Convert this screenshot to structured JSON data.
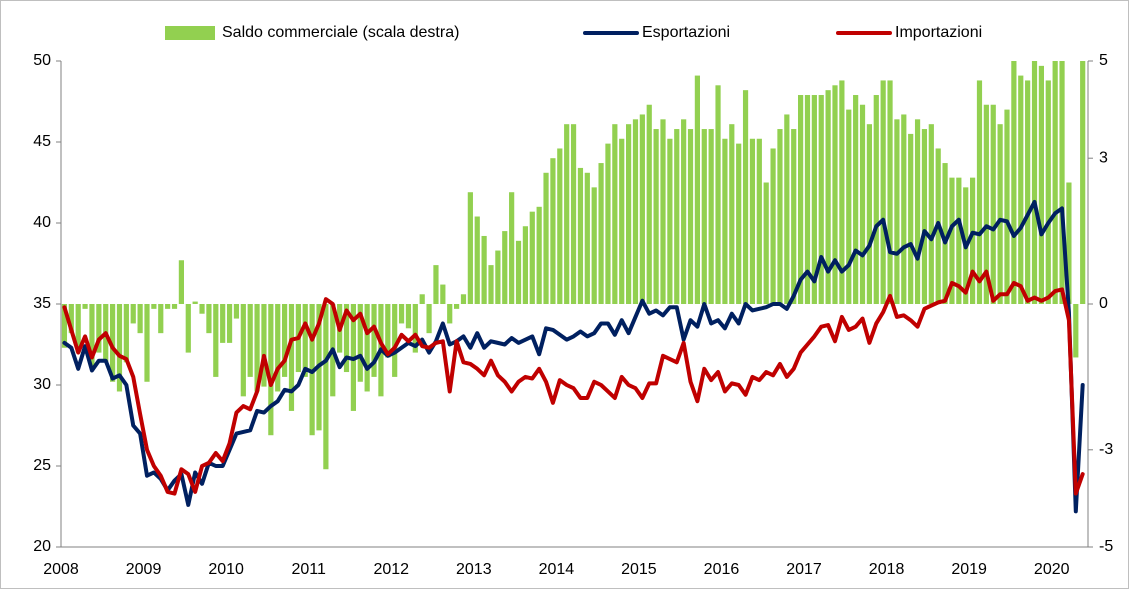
{
  "chart_data": {
    "type": "combo",
    "categories": [
      "2008",
      null,
      null,
      null,
      null,
      null,
      null,
      null,
      null,
      null,
      null,
      null,
      "2009",
      null,
      null,
      null,
      null,
      null,
      null,
      null,
      null,
      null,
      null,
      null,
      "2010",
      null,
      null,
      null,
      null,
      null,
      null,
      null,
      null,
      null,
      null,
      null,
      "2011",
      null,
      null,
      null,
      null,
      null,
      null,
      null,
      null,
      null,
      null,
      null,
      "2012",
      null,
      null,
      null,
      null,
      null,
      null,
      null,
      null,
      null,
      null,
      null,
      "2013",
      null,
      null,
      null,
      null,
      null,
      null,
      null,
      null,
      null,
      null,
      null,
      "2014",
      null,
      null,
      null,
      null,
      null,
      null,
      null,
      null,
      null,
      null,
      null,
      "2015",
      null,
      null,
      null,
      null,
      null,
      null,
      null,
      null,
      null,
      null,
      null,
      "2016",
      null,
      null,
      null,
      null,
      null,
      null,
      null,
      null,
      null,
      null,
      null,
      "2017",
      null,
      null,
      null,
      null,
      null,
      null,
      null,
      null,
      null,
      null,
      null,
      "2018",
      null,
      null,
      null,
      null,
      null,
      null,
      null,
      null,
      null,
      null,
      null,
      "2019",
      null,
      null,
      null,
      null,
      null,
      null,
      null,
      null,
      null,
      null,
      null,
      "2020",
      null,
      null,
      null,
      null
    ],
    "series": [
      {
        "name": "Saldo commerciale (scala destra)",
        "type": "bar",
        "axis": "y2",
        "color": "#92d050",
        "values": [
          -0.9,
          -0.6,
          -1.0,
          -0.1,
          -1.3,
          -1.0,
          -1.2,
          -1.6,
          -1.8,
          -1.2,
          -0.4,
          -0.6,
          -1.6,
          -0.1,
          -0.6,
          -0.1,
          -0.1,
          0.9,
          -1.0,
          0.05,
          -0.2,
          -0.6,
          -1.5,
          -0.8,
          -0.8,
          -0.3,
          -1.9,
          -1.5,
          -1.8,
          -1.7,
          -2.7,
          -1.8,
          -1.5,
          -2.2,
          -1.4,
          -1.5,
          -2.7,
          -2.6,
          -3.4,
          -1.9,
          -1.0,
          -1.4,
          -2.2,
          -1.6,
          -1.8,
          -1.5,
          -1.9,
          -1.1,
          -1.5,
          -0.4,
          -0.5,
          -1.0,
          0.2,
          -0.6,
          0.8,
          0.4,
          -0.4,
          -0.1,
          0.2,
          2.3,
          1.8,
          1.4,
          0.8,
          1.1,
          1.5,
          2.3,
          1.3,
          1.6,
          1.9,
          2.0,
          2.7,
          3.0,
          3.2,
          3.7,
          3.7,
          2.8,
          2.7,
          2.4,
          2.9,
          3.3,
          3.7,
          3.4,
          3.7,
          3.8,
          3.9,
          4.1,
          3.6,
          3.8,
          3.4,
          3.6,
          3.8,
          3.6,
          4.7,
          3.6,
          3.6,
          4.5,
          3.4,
          3.7,
          3.3,
          4.4,
          3.4,
          3.4,
          2.5,
          3.2,
          3.6,
          3.9,
          3.6,
          4.3,
          4.3,
          4.3,
          4.3,
          4.4,
          4.5,
          4.6,
          4.0,
          4.3,
          4.1,
          3.7,
          4.3,
          4.6,
          4.6,
          3.8,
          3.9,
          3.5,
          3.8,
          3.6,
          3.7,
          3.2,
          2.9,
          2.6,
          2.6,
          2.4,
          2.6,
          4.6,
          4.1,
          4.1,
          3.7,
          4.0,
          5.0,
          4.7,
          4.6,
          5.0,
          4.9,
          4.6,
          5.0,
          5.0,
          2.5,
          -1.1,
          5.0
        ]
      },
      {
        "name": "Esportazioni",
        "type": "line",
        "axis": "y",
        "color": "#002060",
        "values": [
          32.6,
          32.3,
          31.0,
          32.4,
          30.9,
          31.5,
          31.5,
          30.4,
          30.6,
          30.0,
          27.5,
          27.0,
          24.4,
          24.6,
          24.2,
          23.5,
          24.1,
          24.5,
          22.6,
          24.6,
          23.9,
          25.2,
          25.0,
          25.0,
          26.0,
          27.0,
          27.1,
          27.2,
          28.4,
          28.3,
          28.7,
          29.0,
          29.7,
          29.6,
          30.0,
          31.0,
          30.8,
          31.2,
          31.5,
          32.2,
          31.1,
          31.7,
          31.6,
          31.8,
          31.0,
          31.4,
          32.2,
          31.8,
          32.0,
          32.3,
          32.6,
          32.4,
          32.8,
          32.0,
          32.7,
          33.8,
          32.5,
          32.7,
          33.0,
          32.3,
          33.2,
          32.3,
          32.7,
          32.6,
          32.5,
          32.9,
          32.6,
          32.8,
          33.0,
          31.9,
          33.5,
          33.4,
          33.1,
          32.8,
          33.0,
          33.3,
          33.0,
          33.2,
          33.8,
          33.8,
          33.1,
          34.0,
          33.2,
          34.2,
          35.2,
          34.4,
          34.6,
          34.3,
          34.8,
          34.8,
          32.8,
          34.0,
          33.6,
          35.0,
          33.8,
          34.0,
          33.5,
          34.4,
          33.8,
          35.0,
          34.6,
          34.7,
          34.8,
          35.0,
          35.0,
          34.7,
          35.5,
          36.5,
          37.0,
          36.4,
          37.9,
          37.0,
          37.7,
          37.0,
          37.4,
          38.3,
          38.0,
          38.6,
          39.8,
          40.2,
          38.2,
          38.1,
          38.5,
          38.7,
          37.8,
          39.5,
          39.0,
          40.0,
          38.8,
          39.8,
          40.2,
          38.5,
          39.4,
          39.3,
          39.8,
          39.6,
          40.2,
          40.1,
          39.2,
          39.7,
          40.5,
          41.3,
          39.3,
          40.0,
          40.6,
          40.9,
          34.5,
          22.2,
          30.0
        ]
      },
      {
        "name": "Importazioni",
        "type": "line",
        "axis": "y",
        "color": "#c00000",
        "values": [
          34.8,
          33.4,
          32.0,
          33.0,
          31.7,
          32.8,
          33.2,
          32.3,
          31.8,
          31.6,
          30.5,
          28.2,
          26.0,
          25.0,
          24.4,
          23.4,
          23.3,
          24.8,
          24.5,
          23.4,
          25.0,
          25.2,
          25.8,
          25.3,
          26.4,
          28.3,
          28.7,
          28.5,
          29.6,
          31.8,
          30.0,
          31.0,
          31.5,
          32.8,
          32.9,
          33.8,
          32.8,
          33.8,
          35.3,
          35.0,
          33.4,
          34.6,
          34.0,
          34.4,
          33.2,
          33.6,
          32.6,
          31.9,
          32.3,
          33.1,
          32.7,
          33.1,
          32.4,
          32.3,
          32.6,
          32.7,
          29.6,
          32.7,
          31.4,
          31.3,
          31.0,
          30.6,
          31.5,
          30.6,
          30.2,
          29.6,
          30.2,
          30.5,
          30.4,
          31.0,
          30.2,
          28.9,
          30.3,
          30.0,
          29.8,
          29.2,
          29.2,
          30.2,
          30.0,
          29.6,
          29.2,
          30.5,
          30.0,
          29.8,
          29.2,
          30.1,
          30.1,
          31.8,
          31.6,
          31.4,
          32.6,
          30.2,
          29.0,
          31.0,
          30.3,
          30.8,
          29.6,
          30.1,
          30.0,
          29.4,
          30.5,
          30.3,
          30.8,
          30.6,
          31.3,
          30.5,
          31.0,
          32.0,
          32.5,
          33.0,
          33.6,
          33.7,
          32.7,
          34.2,
          33.4,
          33.6,
          34.1,
          32.6,
          33.8,
          34.5,
          35.5,
          34.2,
          34.3,
          34.0,
          33.6,
          34.7,
          34.9,
          35.1,
          35.2,
          36.3,
          36.1,
          35.7,
          37.0,
          36.4,
          37.0,
          35.2,
          35.6,
          35.6,
          36.3,
          36.1,
          35.2,
          35.4,
          35.2,
          35.4,
          35.8,
          35.9,
          34.0,
          23.3,
          24.5
        ]
      }
    ],
    "ylim": [
      20,
      50
    ],
    "yticks": [
      20,
      25,
      30,
      35,
      40,
      45,
      50
    ],
    "y2lim": [
      -5,
      5
    ],
    "y2ticks": [
      -5,
      -3,
      0,
      3,
      5
    ],
    "grid": false,
    "legend": "top"
  }
}
